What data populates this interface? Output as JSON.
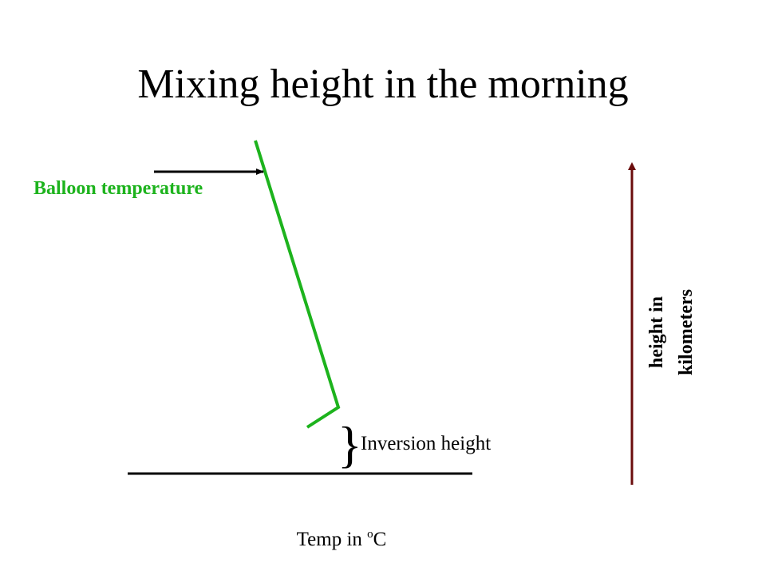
{
  "title": "Mixing height in the morning",
  "balloon_label": "Balloon temperature",
  "inversion_label": "Inversion height",
  "x_axis_label": {
    "text": "Temp in",
    "superscript": "o",
    "unit": "C"
  },
  "y_axis_label": {
    "line1": "height in",
    "line2": "kilometers"
  }
}
